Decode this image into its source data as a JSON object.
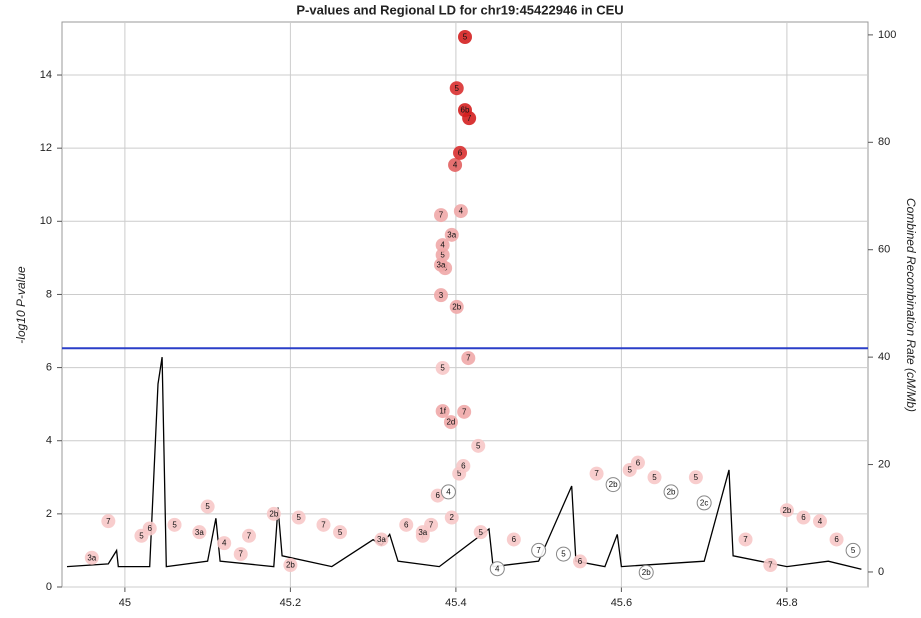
{
  "chart_data": {
    "type": "scatter",
    "title": "P-values and Regional LD for chr19:45422946 in CEU",
    "y_label": "-log10 P-value",
    "y2_label": "Combined Recombination Rate (cM/Mb)",
    "xlim": [
      44.924,
      45.898
    ],
    "ylim": [
      0,
      15.45
    ],
    "y2lim": [
      -2.8,
      102.4
    ],
    "xticks": [
      45,
      45.2,
      45.4,
      45.6,
      45.8
    ],
    "yticks": [
      0,
      2,
      4,
      6,
      8,
      10,
      12,
      14
    ],
    "y2ticks": [
      0,
      20,
      40,
      60,
      80,
      100
    ],
    "grid": true,
    "threshold": {
      "value": 6.53,
      "color": "#2a3fc8"
    },
    "points": {
      "x": [
        45.411,
        45.401,
        45.411,
        45.416,
        45.405,
        45.399,
        45.382,
        45.406,
        45.395,
        45.384,
        45.384,
        45.382,
        45.387,
        45.382,
        45.401,
        45.415,
        45.384,
        45.384,
        45.394,
        45.41,
        45.427,
        45.409,
        45.404,
        45.391,
        45.378,
        45.37,
        45.36,
        45.395,
        44.98,
        45.03,
        45.06,
        45.09,
        45.1,
        45.12,
        45.15,
        45.18,
        45.21,
        45.24,
        45.26,
        45.31,
        45.34,
        45.36,
        45.43,
        45.47,
        45.5,
        45.53,
        45.57,
        45.59,
        45.61,
        45.62,
        45.64,
        45.66,
        45.69,
        45.7,
        45.75,
        45.8,
        45.82,
        45.84,
        45.86,
        45.88,
        44.96,
        45.02,
        45.14,
        45.2,
        45.45,
        45.55,
        45.63,
        45.78
      ],
      "values": [
        15.04,
        13.64,
        13.04,
        12.82,
        11.87,
        11.54,
        10.17,
        10.28,
        9.63,
        9.35,
        9.08,
        8.81,
        8.72,
        7.98,
        7.66,
        6.26,
        5.99,
        4.81,
        4.51,
        4.79,
        3.86,
        3.31,
        3.1,
        2.6,
        2.5,
        1.7,
        1.5,
        1.9,
        1.8,
        1.6,
        1.7,
        1.5,
        2.2,
        1.2,
        1.4,
        2.0,
        1.9,
        1.7,
        1.5,
        1.3,
        1.7,
        1.4,
        1.5,
        1.3,
        1.0,
        0.9,
        3.1,
        2.8,
        3.2,
        3.4,
        3.0,
        2.6,
        3.0,
        2.3,
        1.3,
        2.1,
        1.9,
        1.8,
        1.3,
        1.0,
        0.8,
        1.4,
        0.9,
        0.6,
        0.5,
        0.7,
        0.4,
        0.6
      ],
      "labels": [
        "5",
        "5",
        "6b",
        "7",
        "6",
        "4",
        "7",
        "4",
        "3a",
        "4",
        "5",
        "3a",
        "3",
        "3",
        "2b",
        "7",
        "5",
        "1f",
        "2d",
        "7",
        "5",
        "6",
        "5",
        "4",
        "6",
        "7",
        "3a",
        "2",
        "7",
        "6",
        "5",
        "3a",
        "5",
        "4",
        "7",
        "2b",
        "5",
        "7",
        "5",
        "3a",
        "6",
        "7",
        "5",
        "6",
        "7",
        "5",
        "7",
        "2b",
        "5",
        "6",
        "5",
        "2b",
        "5",
        "2c",
        "7",
        "2b",
        "6",
        "4",
        "6",
        "5",
        "3a",
        "5",
        "7",
        "2b",
        "4",
        "6",
        "2b",
        "7"
      ],
      "colors": [
        "#d42020",
        "#d93030",
        "#d42020",
        "#d42020",
        "#d93030",
        "#e26060",
        "#f0a8a8",
        "#f0a8a8",
        "#f0a8a8",
        "#f0a8a8",
        "#f0a8a8",
        "#f0a8a8",
        "#f0a8a8",
        "#f0a8a8",
        "#f0a8a8",
        "#f0a8a8",
        "#f7c8c8",
        "#f0a8a8",
        "#f0a8a8",
        "#f0a8a8",
        "#f7c8c8",
        "#f7c8c8",
        "#f7c8c8",
        "#ffffff",
        "#f7c8c8",
        "#f7c8c8",
        "#f7c8c8",
        "#f7c8c8",
        "#f7c8c8",
        "#f7c8c8",
        "#f7c8c8",
        "#f7c8c8",
        "#f7c8c8",
        "#f7c8c8",
        "#f7c8c8",
        "#f7c8c8",
        "#f7c8c8",
        "#f7c8c8",
        "#f7c8c8",
        "#f7c8c8",
        "#f7c8c8",
        "#f7c8c8",
        "#f7c8c8",
        "#f7c8c8",
        "#ffffff",
        "#ffffff",
        "#f7c8c8",
        "#ffffff",
        "#f7c8c8",
        "#f7c8c8",
        "#f7c8c8",
        "#ffffff",
        "#f7c8c8",
        "#ffffff",
        "#f7c8c8",
        "#f7c8c8",
        "#f7c8c8",
        "#f7c8c8",
        "#f7c8c8",
        "#ffffff",
        "#f7c8c8",
        "#f7c8c8",
        "#f7c8c8",
        "#f7c8c8",
        "#ffffff",
        "#f7c8c8",
        "#ffffff",
        "#f7c8c8"
      ]
    },
    "recombination": {
      "axis": "y2",
      "color": "#000000",
      "x": [
        44.93,
        44.98,
        44.99,
        44.992,
        45.03,
        45.04,
        45.045,
        45.05,
        45.1,
        45.11,
        45.115,
        45.18,
        45.185,
        45.19,
        45.25,
        45.3,
        45.31,
        45.32,
        45.33,
        45.38,
        45.44,
        45.445,
        45.5,
        45.54,
        45.545,
        45.58,
        45.595,
        45.6,
        45.7,
        45.73,
        45.735,
        45.8,
        45.85,
        45.89
      ],
      "values": [
        1,
        1.5,
        4,
        1,
        1,
        35,
        40,
        1,
        2,
        10,
        2,
        1,
        12,
        3,
        1,
        6,
        5,
        7,
        2,
        1,
        8,
        1,
        2,
        16,
        2,
        1,
        7,
        1,
        2,
        19,
        3,
        1,
        2,
        0.5
      ]
    }
  }
}
